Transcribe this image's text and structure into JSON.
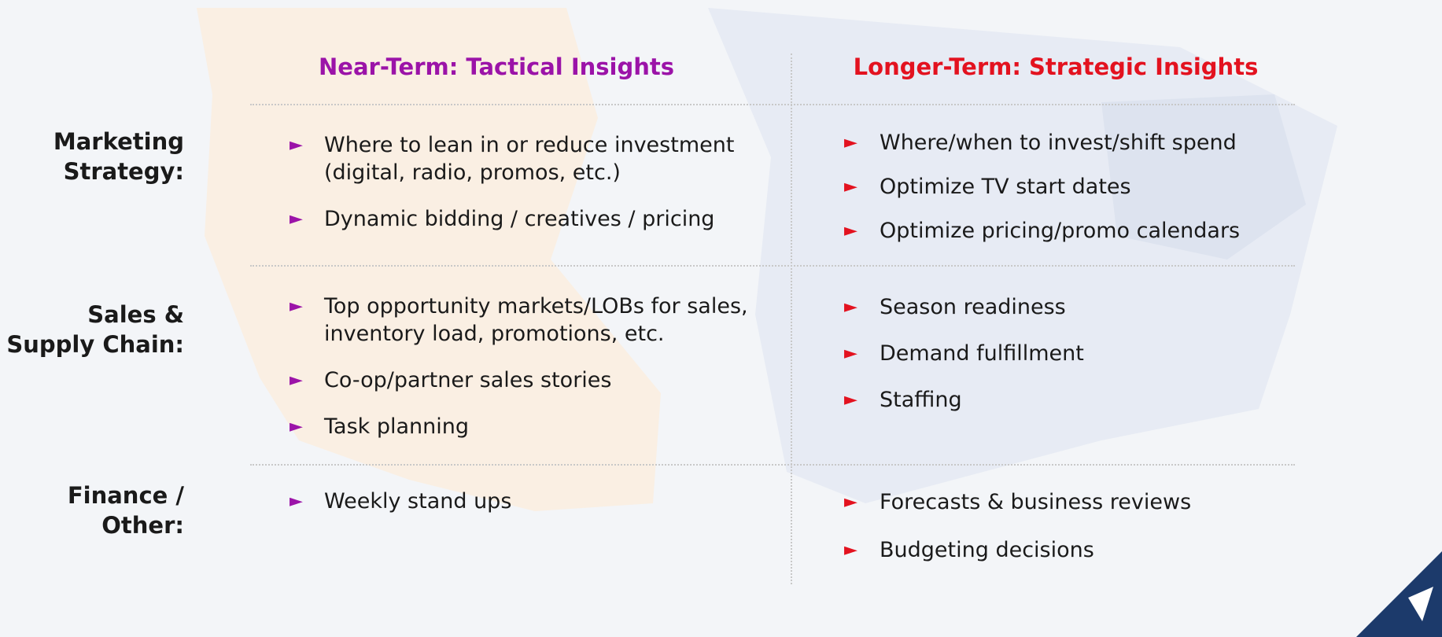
{
  "columns": [
    {
      "title": "Near-Term: Tactical Insights"
    },
    {
      "title": "Longer-Term: Strategic Insights"
    }
  ],
  "rows": [
    {
      "label": [
        "Marketing",
        "Strategy:"
      ],
      "near": [
        [
          "Where to lean in or reduce investment",
          "(digital, radio, promos, etc.)"
        ],
        [
          "Dynamic bidding / creatives / pricing"
        ]
      ],
      "long": [
        [
          "Where/when to invest/shift spend"
        ],
        [
          "Optimize TV start dates"
        ],
        [
          "Optimize pricing/promo calendars"
        ]
      ]
    },
    {
      "label": [
        "Sales &",
        "Supply Chain:"
      ],
      "near": [
        [
          "Top opportunity markets/LOBs for sales,",
          "inventory load, promotions, etc."
        ],
        [
          "Co-op/partner sales stories"
        ],
        [
          "Task planning"
        ]
      ],
      "long": [
        [
          "Season readiness"
        ],
        [
          "Demand fulfillment"
        ],
        [
          "Staffing"
        ]
      ]
    },
    {
      "label": [
        "Finance /",
        "Other:"
      ],
      "near": [
        [
          "Weekly stand ups"
        ]
      ],
      "long": [
        [
          "Forecasts & business reviews"
        ],
        [
          "Budgeting decisions"
        ]
      ]
    }
  ]
}
